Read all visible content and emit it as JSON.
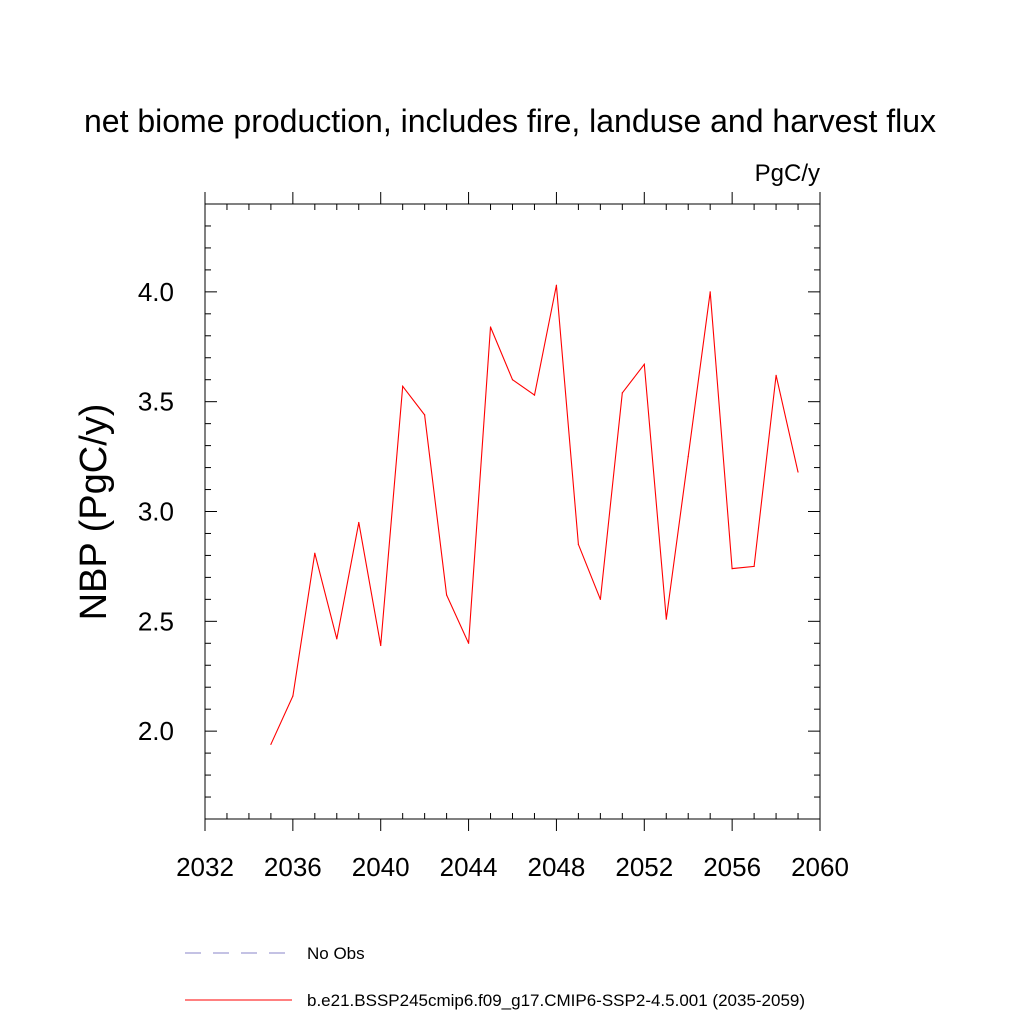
{
  "chart_data": {
    "type": "line",
    "title": "net biome production, includes fire, landuse and harvest flux",
    "units_label": "PgC/y",
    "xlabel": "",
    "ylabel": "NBP  (PgC/y)",
    "xlim": [
      2032,
      2060
    ],
    "ylim": [
      1.6,
      4.4
    ],
    "x_ticks": [
      2032,
      2036,
      2040,
      2044,
      2048,
      2052,
      2056,
      2060
    ],
    "x_tick_labels": [
      "2032",
      "2036",
      "2040",
      "2044",
      "2048",
      "2052",
      "2056",
      "2060"
    ],
    "y_ticks": [
      2.0,
      2.5,
      3.0,
      3.5,
      4.0
    ],
    "y_tick_labels": [
      "2.0",
      "2.5",
      "3.0",
      "3.5",
      "4.0"
    ],
    "x_minor_step": 1,
    "y_minor_step": 0.1,
    "grid": false,
    "legend_position": "bottom",
    "series": [
      {
        "name": "b.e21.BSSP245cmip6.f09_g17.CMIP6-SSP2-4.5.001 (2035-2059)",
        "color": "#ff0000",
        "style": "solid",
        "x": [
          2035,
          2036,
          2037,
          2038,
          2039,
          2040,
          2041,
          2042,
          2043,
          2044,
          2045,
          2046,
          2047,
          2048,
          2049,
          2050,
          2051,
          2052,
          2053,
          2054,
          2055,
          2056,
          2057,
          2058,
          2059
        ],
        "values": [
          1.94,
          2.16,
          2.81,
          2.42,
          2.95,
          2.39,
          3.57,
          3.44,
          2.62,
          2.4,
          3.84,
          3.6,
          3.53,
          4.03,
          2.85,
          2.6,
          3.54,
          3.67,
          2.51,
          3.25,
          4.0,
          2.74,
          2.75,
          3.62,
          3.18
        ]
      }
    ],
    "legend": [
      {
        "label": "No Obs",
        "color": "#8a86c8",
        "style": "dashed"
      },
      {
        "label": "b.e21.BSSP245cmip6.f09_g17.CMIP6-SSP2-4.5.001 (2035-2059)",
        "color": "#ff0000",
        "style": "solid"
      }
    ]
  }
}
